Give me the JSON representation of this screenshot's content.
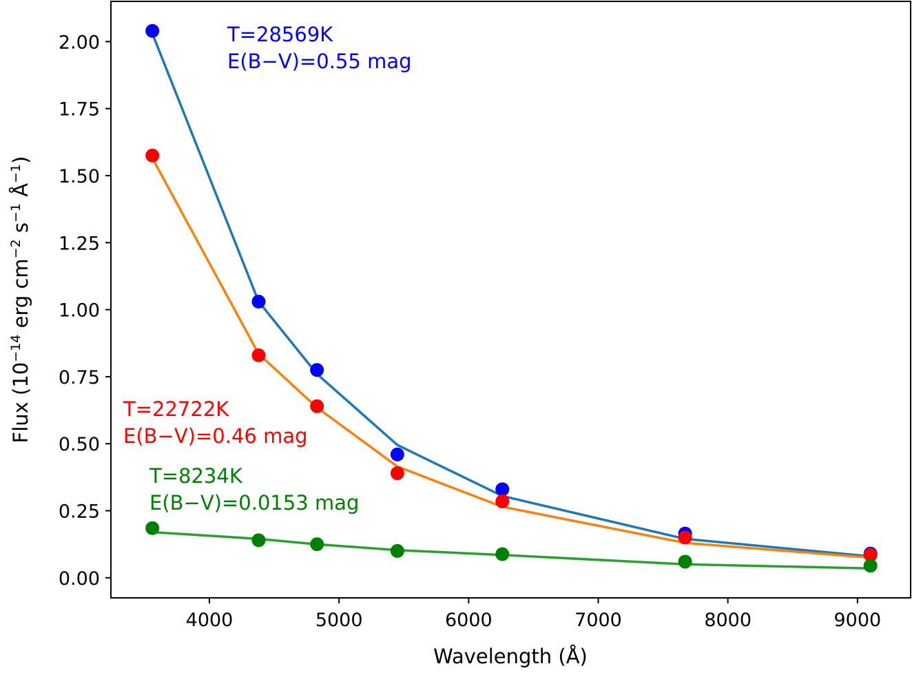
{
  "chart_data": {
    "type": "line",
    "title": "",
    "xlabel": "Wavelength (Å)",
    "ylabel_parts": {
      "prefix": "Flux (10",
      "exp1": "−14",
      "mid1": " erg cm",
      "exp2": "−2",
      "mid2": " s",
      "exp3": "−1",
      "mid3": " Å",
      "exp4": "−1",
      "suffix": ")"
    },
    "xlim": [
      3240,
      9410
    ],
    "ylim": [
      -0.075,
      2.15
    ],
    "xticks": [
      4000,
      5000,
      6000,
      7000,
      8000,
      9000
    ],
    "yticks": [
      0.0,
      0.25,
      0.5,
      0.75,
      1.0,
      1.25,
      1.5,
      1.75,
      2.0
    ],
    "ytick_labels": [
      "0.00",
      "0.25",
      "0.50",
      "0.75",
      "1.00",
      "1.25",
      "1.50",
      "1.75",
      "2.00"
    ],
    "x": [
      3560,
      4380,
      4830,
      5450,
      6260,
      7670,
      9100
    ],
    "series": [
      {
        "name": "T=28569K",
        "point_color": "#0000ff",
        "line_color": "#1f77b4",
        "points": [
          2.04,
          1.03,
          0.775,
          0.46,
          0.33,
          0.165,
          0.09
        ],
        "model": [
          2.03,
          1.03,
          0.76,
          0.495,
          0.305,
          0.145,
          0.08
        ]
      },
      {
        "name": "T=22722K",
        "point_color": "#ff0000",
        "line_color": "#ff7f0e",
        "points": [
          1.575,
          0.83,
          0.64,
          0.39,
          0.285,
          0.15,
          0.085
        ],
        "model": [
          1.565,
          0.835,
          0.635,
          0.415,
          0.265,
          0.13,
          0.075
        ]
      },
      {
        "name": "T=8234K",
        "point_color": "#008000",
        "line_color": "#2ca02c",
        "points": [
          0.185,
          0.14,
          0.125,
          0.1,
          0.088,
          0.06,
          0.045
        ],
        "model": [
          0.17,
          0.145,
          0.125,
          0.103,
          0.085,
          0.05,
          0.035
        ]
      }
    ],
    "annotations": [
      {
        "line1": "T=28569K",
        "line2": "E(B−V)=0.55 mag",
        "color": "#0000ff"
      },
      {
        "line1": "T=22722K",
        "line2": "E(B−V)=0.46 mag",
        "color": "#ff0000"
      },
      {
        "line1": "T=8234K",
        "line2": "E(B−V)=0.0153 mag",
        "color": "#008000"
      }
    ]
  }
}
